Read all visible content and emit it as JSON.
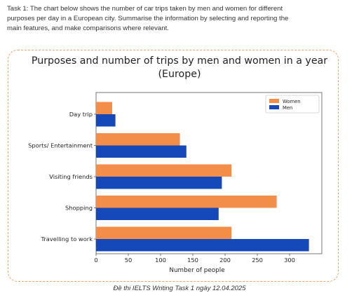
{
  "task": {
    "line1": "Task 1: The chart below shows the number of  car trips taken by men and women for different",
    "line2": "purposes per day in a European city. Summarise the information by selecting and reporting the",
    "line3": "main features, and make comparisons where relevant."
  },
  "caption": "Đề thi IELTS Writing Task 1 ngày 12.04.2025",
  "colors": {
    "women": "#F28E4A",
    "men": "#1548B8",
    "border": "#F0A060"
  },
  "chart_data": {
    "type": "bar",
    "orientation": "horizontal",
    "title_line1": "Purposes and number of trips by men and women in a year",
    "title_line2": "(Europe)",
    "xlabel": "Number of people",
    "ylabel": "",
    "categories": [
      "Day trip",
      "Sports/ Entertainment",
      "Visiting friends",
      "Shopping",
      "Travelling to work"
    ],
    "series": [
      {
        "name": "Women",
        "values": [
          25,
          130,
          210,
          280,
          210
        ]
      },
      {
        "name": "Men",
        "values": [
          30,
          140,
          195,
          190,
          330
        ]
      }
    ],
    "xlim": [
      0,
      350
    ],
    "xticks": [
      0,
      50,
      100,
      150,
      200,
      250,
      300
    ],
    "legend_position": "top-right",
    "grid": false
  }
}
